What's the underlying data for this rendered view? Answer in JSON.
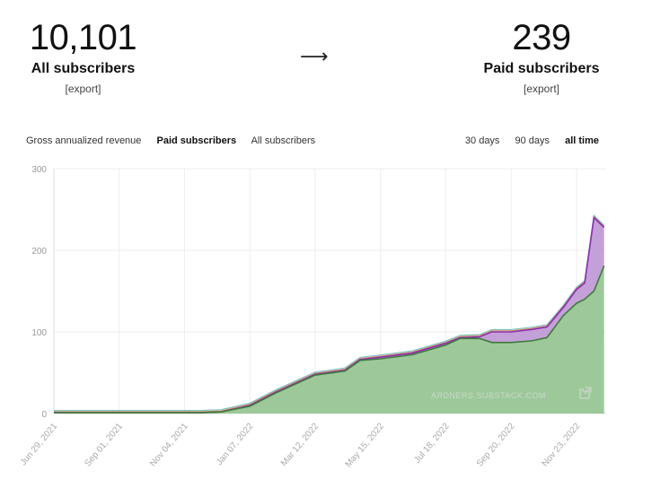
{
  "stats": {
    "all": {
      "value": "10,101",
      "label": "All subscribers",
      "export": "[export]"
    },
    "arrow": "⟶",
    "paid": {
      "value": "239",
      "label": "Paid subscribers",
      "export": "[export]"
    }
  },
  "metric_tabs": [
    {
      "label": "Gross annualized revenue",
      "active": false
    },
    {
      "label": "Paid subscribers",
      "active": true
    },
    {
      "label": "All subscribers",
      "active": false
    }
  ],
  "range_tabs": [
    {
      "label": "30 days",
      "active": false
    },
    {
      "label": "90 days",
      "active": false
    },
    {
      "label": "all time",
      "active": true
    }
  ],
  "watermark": "ARDNERS.SUBSTACK.COM",
  "colors": {
    "green_fill": "#9dc99a",
    "green_line": "#3f7a3c",
    "purple_fill": "#c4a0d8",
    "purple_line": "#8a2fb0",
    "teal_line": "#7cc3c3",
    "orange_line": "#d48a5a",
    "grid": "#eeeeee"
  },
  "chart_data": {
    "type": "area",
    "xlabel": "",
    "ylabel": "",
    "ylim": [
      0,
      300
    ],
    "yticks": [
      0,
      100,
      200,
      300
    ],
    "x_tick_labels": [
      "Jun 29, 2021",
      "Sep 01, 2021",
      "Nov 04, 2021",
      "Jan 07, 2022",
      "Mar 12, 2022",
      "May 15, 2022",
      "Jul 18, 2022",
      "Sep 20, 2022",
      "Nov 23, 2022"
    ],
    "dates": [
      "2021-06-29",
      "2021-09-01",
      "2021-11-04",
      "2021-11-20",
      "2021-12-10",
      "2022-01-07",
      "2022-02-01",
      "2022-03-12",
      "2022-04-10",
      "2022-04-25",
      "2022-05-15",
      "2022-06-15",
      "2022-07-18",
      "2022-08-01",
      "2022-08-20",
      "2022-09-01",
      "2022-09-20",
      "2022-10-10",
      "2022-10-25",
      "2022-11-10",
      "2022-11-23",
      "2022-12-01",
      "2022-12-10",
      "2022-12-20"
    ],
    "series": [
      {
        "values": [
          1,
          1,
          1,
          1,
          2,
          9,
          25,
          47,
          52,
          65,
          67,
          72,
          84,
          92,
          92,
          87,
          87,
          89,
          93,
          120,
          135,
          140,
          150,
          181
        ]
      },
      {
        "values": [
          1,
          1,
          1,
          1,
          2,
          10,
          26,
          48,
          53,
          66,
          69,
          74,
          86,
          93,
          94,
          100,
          100,
          103,
          106,
          130,
          152,
          160,
          240,
          228
        ]
      }
    ]
  }
}
